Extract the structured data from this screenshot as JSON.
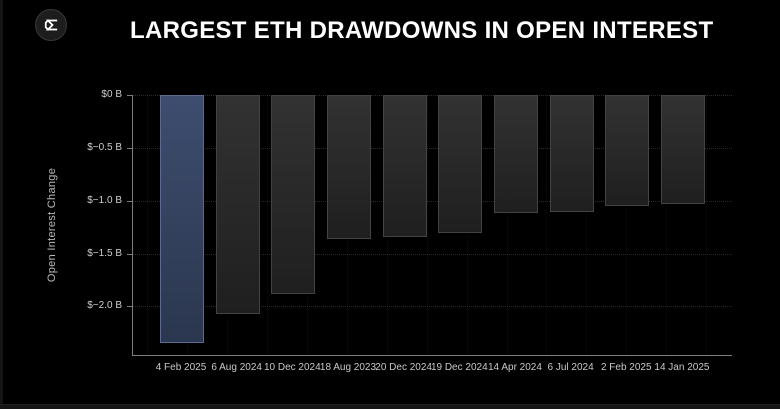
{
  "header": {
    "logo_icon": "sigma-logo-icon",
    "title": "LARGEST ETH DRAWDOWNS IN OPEN INTEREST"
  },
  "chart_data": {
    "type": "bar",
    "title": "LARGEST ETH DRAWDOWNS IN OPEN INTEREST",
    "xlabel": "",
    "ylabel": "Open Interest Change",
    "value_unit": "billion USD",
    "categories": [
      "4 Feb 2025",
      "6 Aug 2024",
      "10 Dec 2024",
      "18 Aug 2023",
      "20 Dec 2024",
      "19 Dec 2024",
      "14 Apr 2024",
      "6 Jul 2024",
      "2 Feb 2025",
      "14 Jan 2025"
    ],
    "values": [
      -2.35,
      -2.07,
      -1.88,
      -1.36,
      -1.34,
      -1.31,
      -1.12,
      -1.11,
      -1.05,
      -1.03
    ],
    "highlight_index": 0,
    "ylim": [
      -2.47,
      0
    ],
    "yticks": [
      {
        "value": 0,
        "label": "$0 B"
      },
      {
        "value": -0.5,
        "label": "$−0.5 B"
      },
      {
        "value": -1.0,
        "label": "$−1.0 B"
      },
      {
        "value": -1.5,
        "label": "$−1.5 B"
      },
      {
        "value": -2.0,
        "label": "$−2.0 B"
      }
    ],
    "grid": "horizontal-dotted",
    "legend": "none",
    "colors": {
      "background": "#000000",
      "title_text": "#ffffff",
      "bar_fill_top": "#323232",
      "bar_fill_bottom": "#1f1f1f",
      "bar_border": "#434343",
      "highlight_fill_top": "#3e4d6f",
      "highlight_fill_bottom": "#2b374f",
      "highlight_border": "#5a6a90",
      "axis_line": "#7c7c7c",
      "tick_label": "#cfcfcf"
    }
  }
}
